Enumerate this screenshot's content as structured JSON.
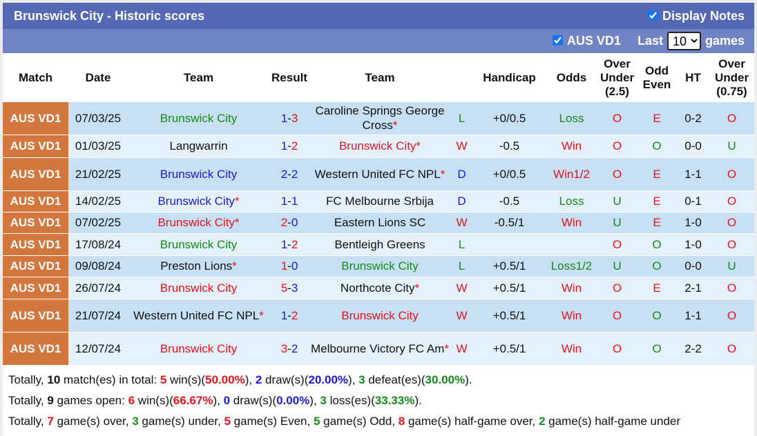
{
  "title": "Brunswick City - Historic scores",
  "display_notes": {
    "label": "Display Notes",
    "checked": true
  },
  "filter": {
    "league_label": "AUS VD1",
    "checked": true,
    "last_label": "Last",
    "last_value": "10",
    "games_label": "games"
  },
  "headers": [
    "Match",
    "Date",
    "Team",
    "Result",
    "Team",
    "",
    "Handicap",
    "Odds",
    "Over Under (2.5)",
    "Odd Even",
    "HT",
    "Over Under (0.75)"
  ],
  "colors": {
    "win": "#e3141d",
    "draw": "#1a1ad0",
    "loss": "#15891b",
    "league": "#d2773e",
    "header": "#5468b4"
  },
  "rows": [
    {
      "match": "AUS VD1",
      "date": "07/03/25",
      "home": "Brunswick City",
      "home_c": "g",
      "home_star": "",
      "s1": "1",
      "s1c": "bl",
      "s2": "3",
      "s2c": "r",
      "away": "Caroline Springs George Cross",
      "away_c": "k",
      "away_star": "*",
      "res": "L",
      "res_c": "g",
      "hcp": "+0/0.5",
      "odds": "Loss",
      "odds_c": "g",
      "ou": "O",
      "ou_c": "r",
      "oe": "E",
      "oe_c": "r",
      "ht": "0-2",
      "ou2": "O",
      "ou2_c": "r"
    },
    {
      "match": "AUS VD1",
      "date": "01/03/25",
      "home": "Langwarrin",
      "home_c": "k",
      "home_star": "",
      "s1": "1",
      "s1c": "bl",
      "s2": "2",
      "s2c": "r",
      "away": "Brunswick City",
      "away_c": "r",
      "away_star": "*",
      "res": "W",
      "res_c": "r",
      "hcp": "-0.5",
      "odds": "Win",
      "odds_c": "r",
      "ou": "O",
      "ou_c": "r",
      "oe": "O",
      "oe_c": "g",
      "ht": "0-0",
      "ou2": "U",
      "ou2_c": "g"
    },
    {
      "match": "AUS VD1",
      "date": "21/02/25",
      "home": "Brunswick City",
      "home_c": "bl",
      "home_star": "",
      "s1": "2",
      "s1c": "bl",
      "s2": "2",
      "s2c": "bl",
      "away": "Western United FC NPL",
      "away_c": "k",
      "away_star": "*",
      "res": "D",
      "res_c": "bl",
      "hcp": "+0/0.5",
      "odds": "Win1/2",
      "odds_c": "r",
      "ou": "O",
      "ou_c": "r",
      "oe": "E",
      "oe_c": "r",
      "ht": "1-1",
      "ou2": "O",
      "ou2_c": "r"
    },
    {
      "match": "AUS VD1",
      "date": "14/02/25",
      "home": "Brunswick City",
      "home_c": "bl",
      "home_star": "*",
      "s1": "1",
      "s1c": "bl",
      "s2": "1",
      "s2c": "bl",
      "away": "FC Melbourne Srbija",
      "away_c": "k",
      "away_star": "",
      "res": "D",
      "res_c": "bl",
      "hcp": "-0.5",
      "odds": "Loss",
      "odds_c": "g",
      "ou": "U",
      "ou_c": "g",
      "oe": "E",
      "oe_c": "r",
      "ht": "0-1",
      "ou2": "O",
      "ou2_c": "r"
    },
    {
      "match": "AUS VD1",
      "date": "07/02/25",
      "home": "Brunswick City",
      "home_c": "r",
      "home_star": "*",
      "s1": "2",
      "s1c": "r",
      "s2": "0",
      "s2c": "bl",
      "away": "Eastern Lions SC",
      "away_c": "k",
      "away_star": "",
      "res": "W",
      "res_c": "r",
      "hcp": "-0.5/1",
      "odds": "Win",
      "odds_c": "r",
      "ou": "U",
      "ou_c": "g",
      "oe": "E",
      "oe_c": "r",
      "ht": "1-0",
      "ou2": "O",
      "ou2_c": "r"
    },
    {
      "match": "AUS VD1",
      "date": "17/08/24",
      "home": "Brunswick City",
      "home_c": "g",
      "home_star": "",
      "s1": "1",
      "s1c": "bl",
      "s2": "2",
      "s2c": "r",
      "away": "Bentleigh Greens",
      "away_c": "k",
      "away_star": "",
      "res": "L",
      "res_c": "g",
      "hcp": "",
      "odds": "",
      "odds_c": "k",
      "ou": "O",
      "ou_c": "r",
      "oe": "O",
      "oe_c": "g",
      "ht": "1-0",
      "ou2": "O",
      "ou2_c": "r"
    },
    {
      "match": "AUS VD1",
      "date": "09/08/24",
      "home": "Preston Lions",
      "home_c": "k",
      "home_star": "*",
      "s1": "1",
      "s1c": "r",
      "s2": "0",
      "s2c": "bl",
      "away": "Brunswick City",
      "away_c": "g",
      "away_star": "",
      "res": "L",
      "res_c": "g",
      "hcp": "+0.5/1",
      "odds": "Loss1/2",
      "odds_c": "g",
      "ou": "U",
      "ou_c": "g",
      "oe": "O",
      "oe_c": "g",
      "ht": "0-0",
      "ou2": "U",
      "ou2_c": "g"
    },
    {
      "match": "AUS VD1",
      "date": "26/07/24",
      "home": "Brunswick City",
      "home_c": "r",
      "home_star": "",
      "s1": "5",
      "s1c": "r",
      "s2": "3",
      "s2c": "bl",
      "away": "Northcote City",
      "away_c": "k",
      "away_star": "*",
      "res": "W",
      "res_c": "r",
      "hcp": "+0.5/1",
      "odds": "Win",
      "odds_c": "r",
      "ou": "O",
      "ou_c": "r",
      "oe": "E",
      "oe_c": "r",
      "ht": "2-1",
      "ou2": "O",
      "ou2_c": "r"
    },
    {
      "match": "AUS VD1",
      "date": "21/07/24",
      "home": "Western United FC NPL",
      "home_c": "k",
      "home_star": "*",
      "s1": "1",
      "s1c": "bl",
      "s2": "2",
      "s2c": "r",
      "away": "Brunswick City",
      "away_c": "r",
      "away_star": "",
      "res": "W",
      "res_c": "r",
      "hcp": "+0.5/1",
      "odds": "Win",
      "odds_c": "r",
      "ou": "O",
      "ou_c": "r",
      "oe": "O",
      "oe_c": "g",
      "ht": "1-1",
      "ou2": "O",
      "ou2_c": "r"
    },
    {
      "match": "AUS VD1",
      "date": "12/07/24",
      "home": "Brunswick City",
      "home_c": "r",
      "home_star": "",
      "s1": "3",
      "s1c": "r",
      "s2": "2",
      "s2c": "bl",
      "away": "Melbourne Victory FC Am",
      "away_c": "k",
      "away_star": "*",
      "res": "W",
      "res_c": "r",
      "hcp": "+0.5/1",
      "odds": "Win",
      "odds_c": "r",
      "ou": "O",
      "ou_c": "r",
      "oe": "O",
      "oe_c": "g",
      "ht": "2-2",
      "ou2": "O",
      "ou2_c": "r"
    }
  ],
  "summary": [
    [
      [
        "Totally, ",
        "k"
      ],
      [
        "10",
        "kb"
      ],
      [
        " match(es) in total: ",
        "k"
      ],
      [
        "5",
        "r"
      ],
      [
        " win(s)(",
        "k"
      ],
      [
        "50.00%",
        "r"
      ],
      [
        "), ",
        "k"
      ],
      [
        "2",
        "bl"
      ],
      [
        " draw(s)(",
        "k"
      ],
      [
        "20.00%",
        "bl"
      ],
      [
        "), ",
        "k"
      ],
      [
        "3",
        "g"
      ],
      [
        " defeat(es)(",
        "k"
      ],
      [
        "30.00%",
        "g"
      ],
      [
        ").",
        "k"
      ]
    ],
    [
      [
        "Totally, ",
        "k"
      ],
      [
        "9",
        "kb"
      ],
      [
        " games open: ",
        "k"
      ],
      [
        "6",
        "r"
      ],
      [
        " win(s)(",
        "k"
      ],
      [
        "66.67%",
        "r"
      ],
      [
        "), ",
        "k"
      ],
      [
        "0",
        "bl"
      ],
      [
        " draw(s)(",
        "k"
      ],
      [
        "0.00%",
        "bl"
      ],
      [
        "), ",
        "k"
      ],
      [
        "3",
        "g"
      ],
      [
        " loss(es)(",
        "k"
      ],
      [
        "33.33%",
        "g"
      ],
      [
        ").",
        "k"
      ]
    ],
    [
      [
        "Totally, ",
        "k"
      ],
      [
        "7",
        "r"
      ],
      [
        " game(s) over, ",
        "k"
      ],
      [
        "3",
        "g"
      ],
      [
        " game(s) under, ",
        "k"
      ],
      [
        "5",
        "r"
      ],
      [
        " game(s) Even, ",
        "k"
      ],
      [
        "5",
        "g"
      ],
      [
        " game(s) Odd, ",
        "k"
      ],
      [
        "8",
        "r"
      ],
      [
        " game(s) half-game over, ",
        "k"
      ],
      [
        "2",
        "g"
      ],
      [
        " game(s) half-game under",
        "k"
      ]
    ]
  ]
}
